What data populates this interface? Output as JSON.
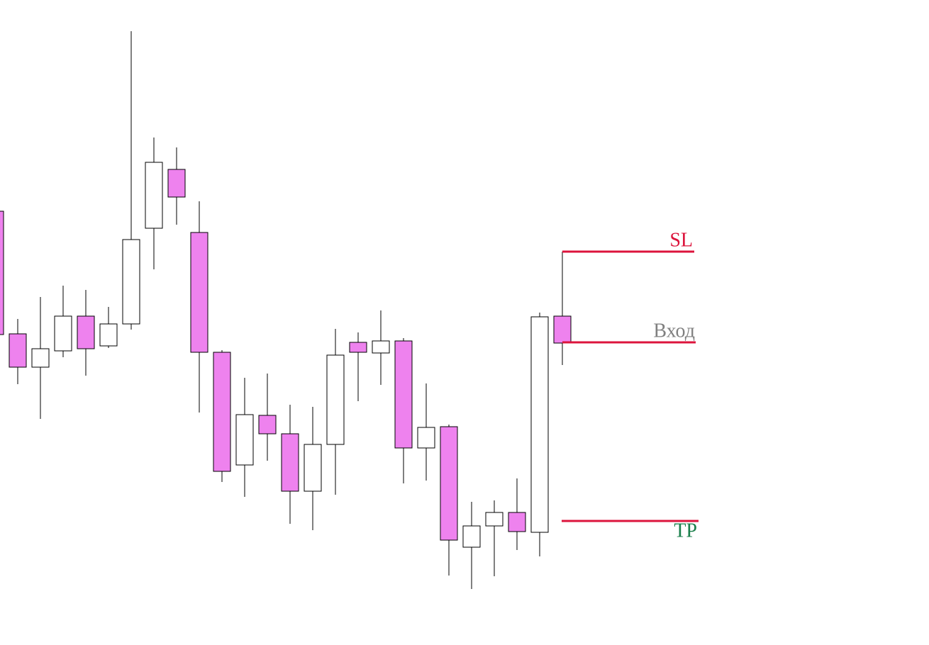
{
  "chart_data": {
    "type": "candlestick",
    "categories": [
      null,
      null,
      null,
      null,
      null,
      null,
      null,
      null,
      null,
      null,
      null,
      null,
      null,
      null,
      null,
      null,
      null,
      null,
      null,
      null,
      null,
      null,
      null,
      null,
      null,
      null
    ],
    "open": [
      612,
      439,
      392,
      415,
      464,
      422,
      453,
      588,
      671,
      582,
      413,
      254,
      324,
      298,
      217,
      283,
      427,
      412,
      429,
      278,
      308,
      138,
      168,
      187,
      159,
      464
    ],
    "high": [
      612,
      460,
      491,
      507,
      501,
      477,
      866,
      716,
      702,
      626,
      416,
      377,
      383,
      339,
      336,
      446,
      441,
      472,
      433,
      369,
      311,
      202,
      204,
      235,
      469,
      555
    ],
    "low": [
      438,
      368,
      319,
      406,
      380,
      419,
      445,
      530,
      593,
      328,
      230,
      209,
      260,
      171,
      162,
      212,
      344,
      367,
      228,
      232,
      98,
      79,
      97,
      134,
      125,
      395
    ],
    "close": [
      438,
      392,
      418,
      464,
      418,
      453,
      572,
      681,
      632,
      413,
      245,
      325,
      298,
      217,
      283,
      409,
      413,
      429,
      278,
      307,
      148,
      168,
      187,
      160,
      463,
      426
    ],
    "up_color": "#ffffff",
    "down_color": "#ee82ee",
    "ylim": [
      0,
      910
    ],
    "levels": [
      {
        "label": "SL",
        "value": 555,
        "color": "#dc143c",
        "label_color": "#dc143c"
      },
      {
        "label": "Вход",
        "value": 427,
        "color": "#dc143c",
        "label_color": "#808080"
      },
      {
        "label": "TP",
        "value": 175,
        "color": "#dc143c",
        "label_color": "#1a7f4b"
      }
    ]
  }
}
